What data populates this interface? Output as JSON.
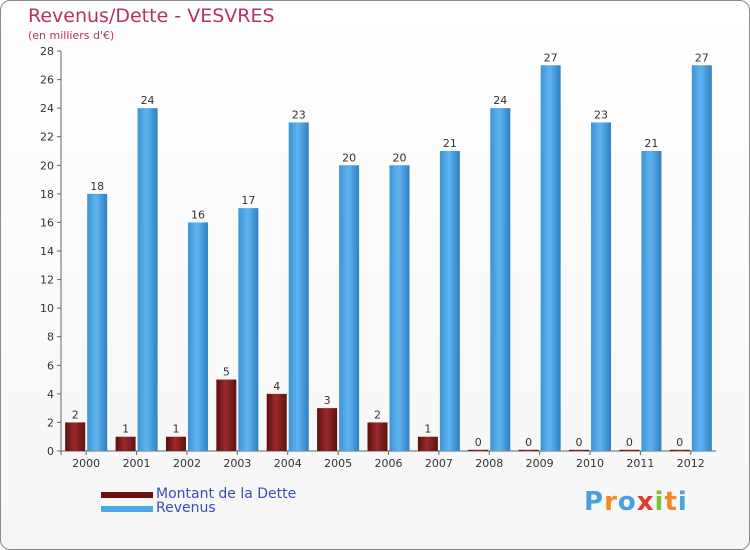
{
  "title": "Revenus/Dette - VESVRES",
  "subtitle": "(en milliers d'€)",
  "logo": {
    "letters": [
      {
        "char": "P",
        "color": "#4aa0dc"
      },
      {
        "char": "r",
        "color": "#f08a24"
      },
      {
        "char": "o",
        "color": "#4aa0dc"
      },
      {
        "char": "x",
        "color": "#e03a2f"
      },
      {
        "char": "i",
        "color": "#7cbf3a"
      },
      {
        "char": "t",
        "color": "#f08a24"
      },
      {
        "char": "i",
        "color": "#4aa0dc"
      }
    ]
  },
  "chart_data": {
    "type": "bar",
    "title": "Revenus/Dette - VESVRES",
    "subtitle": "(en milliers d'€)",
    "categories": [
      "2000",
      "2001",
      "2002",
      "2003",
      "2004",
      "2005",
      "2006",
      "2007",
      "2008",
      "2009",
      "2010",
      "2011",
      "2012"
    ],
    "series": [
      {
        "name": "Montant de la Dette",
        "color": "#7a1a1a",
        "values": [
          2,
          1,
          1,
          5,
          4,
          3,
          2,
          1,
          0,
          0,
          0,
          0,
          0
        ]
      },
      {
        "name": "Revenus",
        "color": "#4ea6e6",
        "values": [
          18,
          24,
          16,
          17,
          23,
          20,
          20,
          21,
          24,
          27,
          23,
          21,
          27
        ]
      }
    ],
    "ylim": [
      0,
      28
    ],
    "yticks": [
      0,
      2,
      4,
      6,
      8,
      10,
      12,
      14,
      16,
      18,
      20,
      22,
      24,
      26,
      28
    ],
    "grid": false,
    "legend_position": "bottom-left"
  }
}
